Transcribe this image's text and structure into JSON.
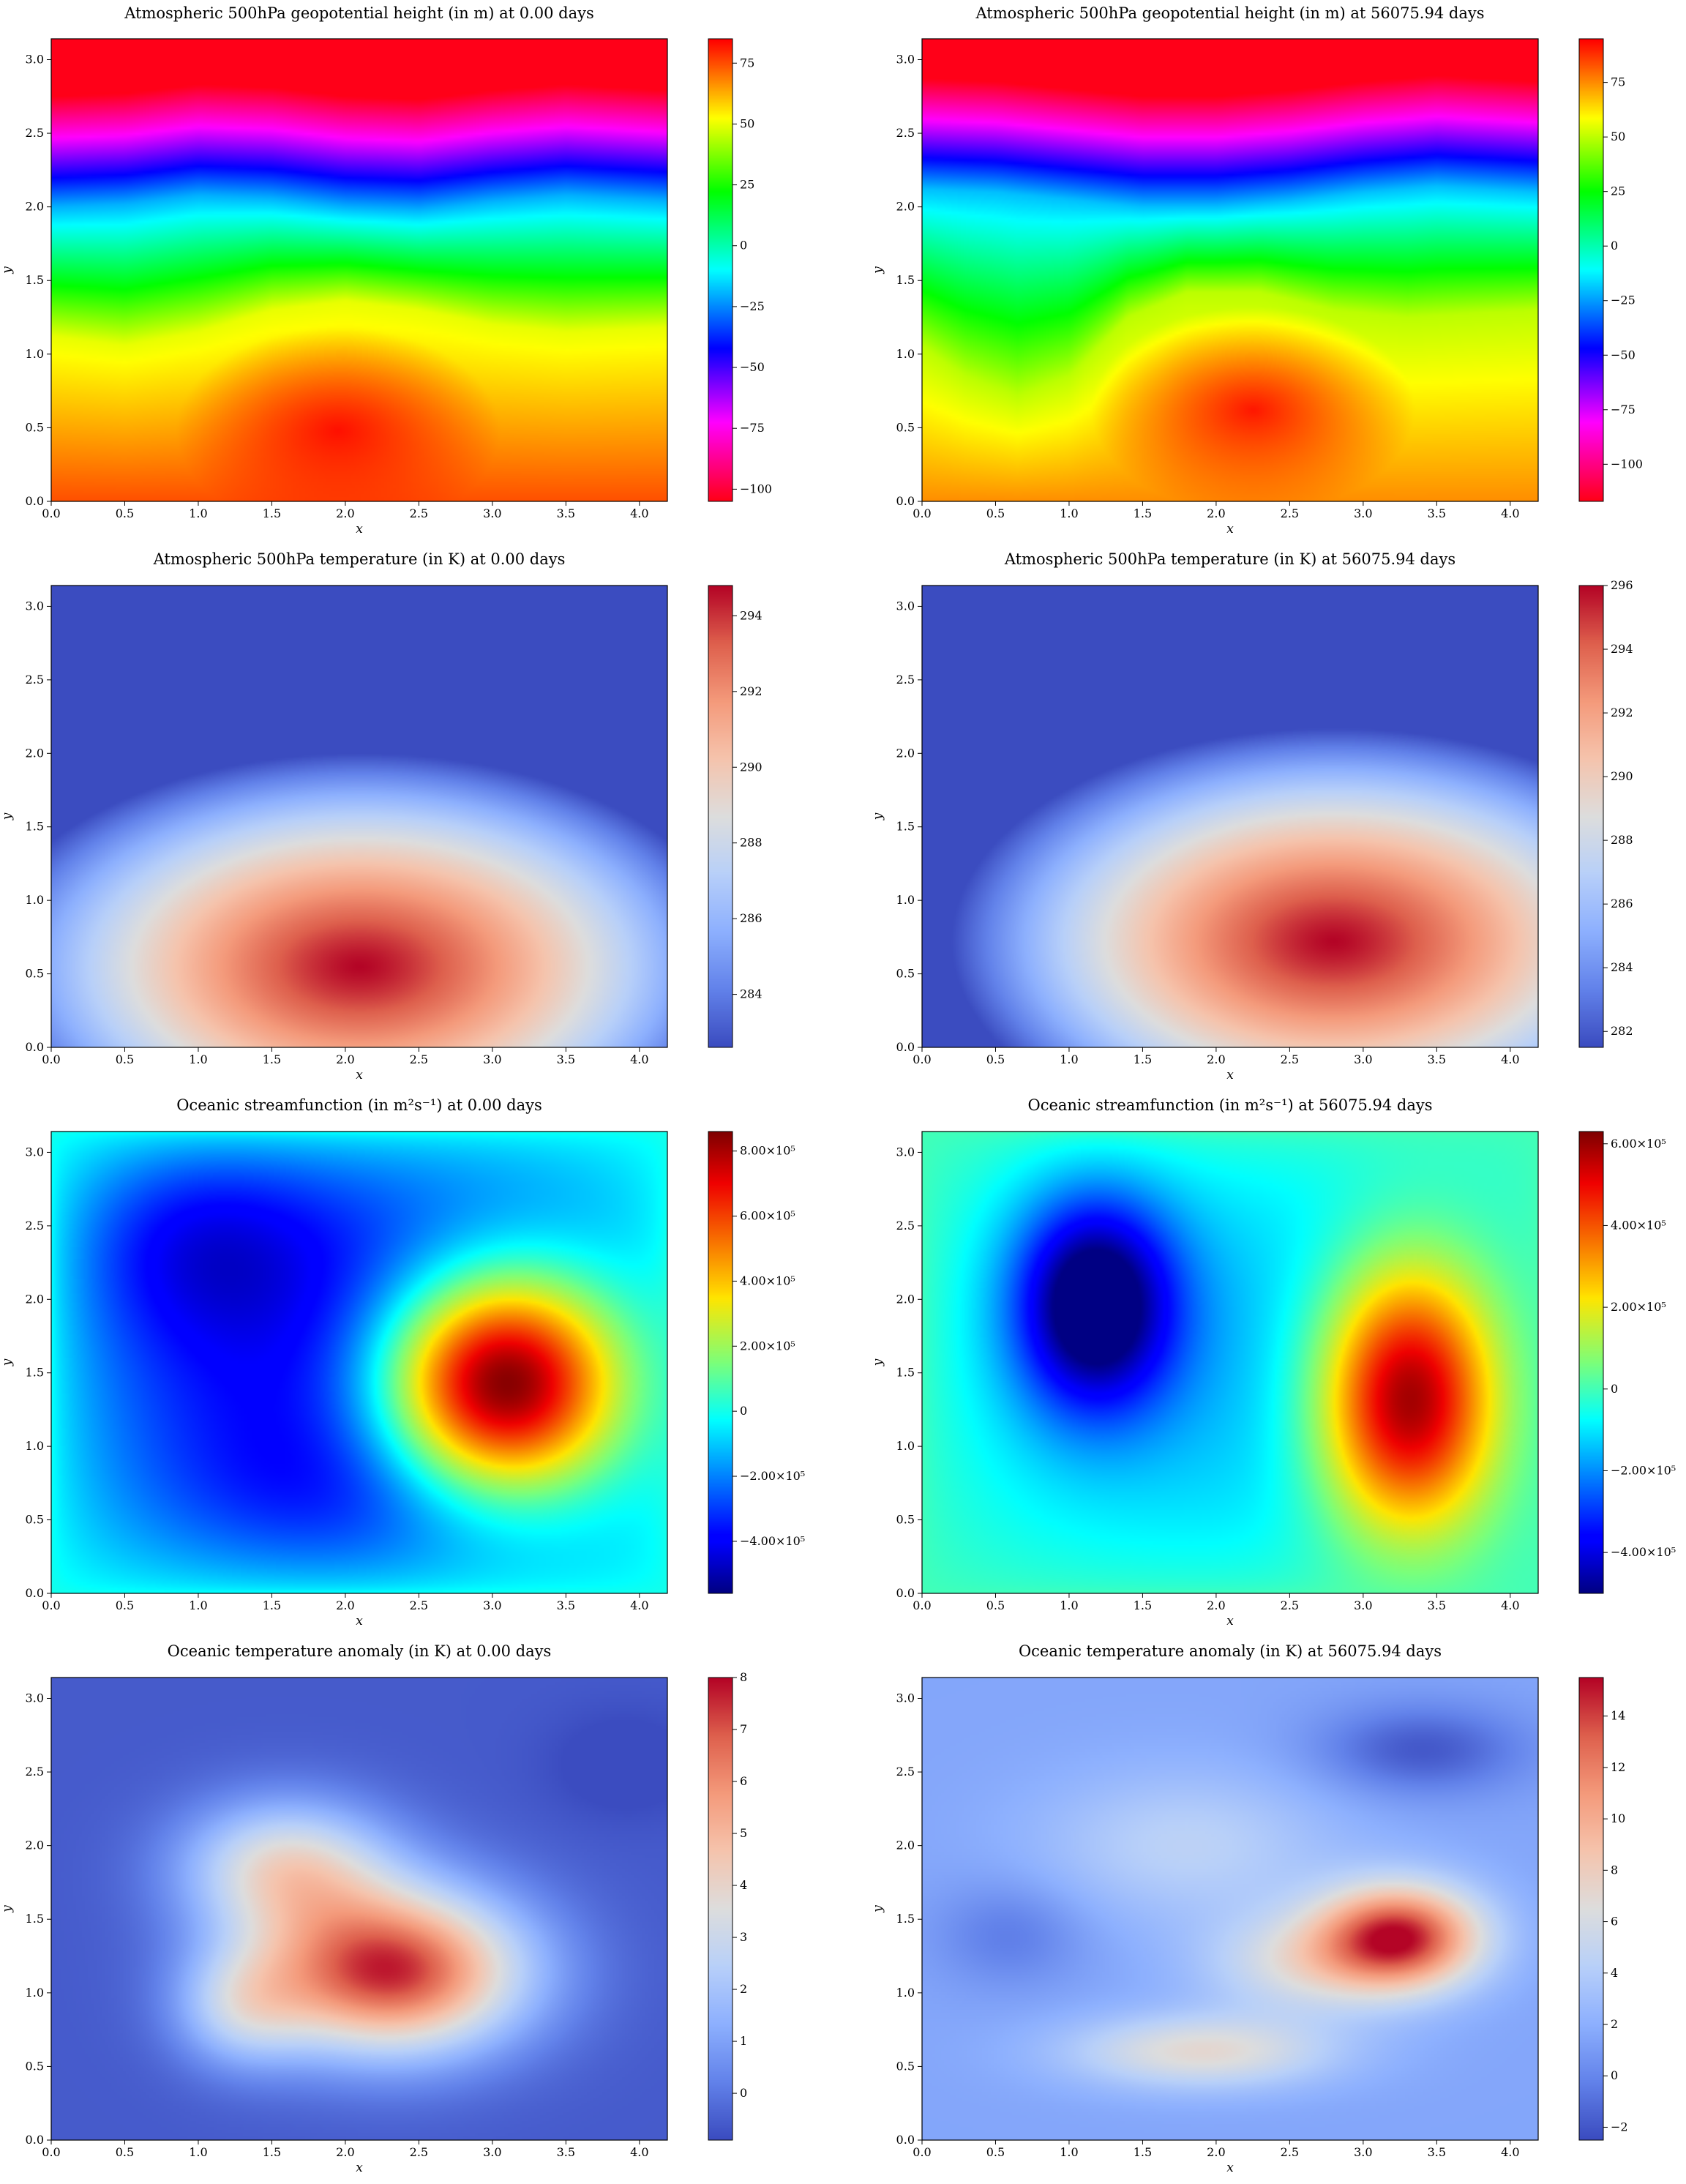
{
  "figure": {
    "layout": "4 rows x 2 columns of heatmaps, each with a colorbar on the right",
    "colormaps": {
      "geopotential": "hsv",
      "atm_temperature": "coolwarm",
      "streamfunction": "jet",
      "ocean_temperature": "coolwarm"
    }
  },
  "chart_data": [
    {
      "type": "heatmap",
      "title": "Atmospheric 500hPa geopotential height (in m) at 0.00 days",
      "xlabel": "x",
      "ylabel": "y",
      "xlim": [
        0,
        4.19
      ],
      "ylim": [
        0,
        3.1416
      ],
      "xticks": [
        "0.0",
        "0.5",
        "1.0",
        "1.5",
        "2.0",
        "2.5",
        "3.0",
        "3.5",
        "4.0"
      ],
      "yticks": [
        "0.0",
        "0.5",
        "1.0",
        "1.5",
        "2.0",
        "2.5",
        "3.0"
      ],
      "colormap": "hsv",
      "colorbar": {
        "min": -105,
        "max": 85,
        "ticks": [
          {
            "v": 75,
            "label": "75"
          },
          {
            "v": 50,
            "label": "50"
          },
          {
            "v": 25,
            "label": "25"
          },
          {
            "v": 0,
            "label": "0"
          },
          {
            "v": -25,
            "label": "−25"
          },
          {
            "v": -50,
            "label": "−50"
          },
          {
            "v": -75,
            "label": "−75"
          },
          {
            "v": -100,
            "label": "−100"
          }
        ]
      },
      "field": {
        "kind": "geo",
        "front": [
          [
            0,
            1.12
          ],
          [
            0.5,
            1.06
          ],
          [
            1.0,
            1.15
          ],
          [
            1.5,
            1.3
          ],
          [
            2.0,
            1.36
          ],
          [
            2.5,
            1.3
          ],
          [
            3.0,
            1.2
          ],
          [
            3.5,
            1.15
          ],
          [
            4.19,
            1.18
          ]
        ],
        "low_band": [
          [
            0,
            2.0
          ],
          [
            0.5,
            2.02
          ],
          [
            1.0,
            2.08
          ],
          [
            1.5,
            2.06
          ],
          [
            2.0,
            2.0
          ],
          [
            2.5,
            1.98
          ],
          [
            3.0,
            2.04
          ],
          [
            3.5,
            2.08
          ],
          [
            4.19,
            2.04
          ]
        ],
        "peak": {
          "x": 1.95,
          "y": 0.48,
          "value": 85
        }
      }
    },
    {
      "type": "heatmap",
      "title": "Atmospheric 500hPa geopotential height (in m) at 56075.94 days",
      "xlabel": "x",
      "ylabel": "y",
      "xlim": [
        0,
        4.19
      ],
      "ylim": [
        0,
        3.1416
      ],
      "xticks": [
        "0.0",
        "0.5",
        "1.0",
        "1.5",
        "2.0",
        "2.5",
        "3.0",
        "3.5",
        "4.0"
      ],
      "yticks": [
        "0.0",
        "0.5",
        "1.0",
        "1.5",
        "2.0",
        "2.5",
        "3.0"
      ],
      "colormap": "hsv",
      "colorbar": {
        "min": -117,
        "max": 95,
        "ticks": [
          {
            "v": 75,
            "label": "75"
          },
          {
            "v": 50,
            "label": "50"
          },
          {
            "v": 25,
            "label": "25"
          },
          {
            "v": 0,
            "label": "0"
          },
          {
            "v": -25,
            "label": "−25"
          },
          {
            "v": -50,
            "label": "−50"
          },
          {
            "v": -75,
            "label": "−75"
          },
          {
            "v": -100,
            "label": "−100"
          }
        ]
      },
      "field": {
        "kind": "geo",
        "front": [
          [
            0,
            1.05
          ],
          [
            0.3,
            0.85
          ],
          [
            0.65,
            0.72
          ],
          [
            1.0,
            0.85
          ],
          [
            1.4,
            1.25
          ],
          [
            1.8,
            1.42
          ],
          [
            2.3,
            1.42
          ],
          [
            2.8,
            1.3
          ],
          [
            3.3,
            1.25
          ],
          [
            3.8,
            1.28
          ],
          [
            4.19,
            1.3
          ]
        ],
        "low_band": [
          [
            0,
            2.12
          ],
          [
            0.5,
            2.1
          ],
          [
            1.0,
            2.05
          ],
          [
            1.5,
            2.0
          ],
          [
            2.0,
            2.0
          ],
          [
            2.5,
            2.04
          ],
          [
            3.0,
            2.1
          ],
          [
            3.5,
            2.14
          ],
          [
            4.19,
            2.1
          ]
        ],
        "peak": {
          "x": 2.25,
          "y": 0.62,
          "value": 95
        }
      }
    },
    {
      "type": "heatmap",
      "title": "Atmospheric 500hPa temperature (in K) at 0.00 days",
      "xlabel": "x",
      "ylabel": "y",
      "xlim": [
        0,
        4.19
      ],
      "ylim": [
        0,
        3.1416
      ],
      "xticks": [
        "0.0",
        "0.5",
        "1.0",
        "1.5",
        "2.0",
        "2.5",
        "3.0",
        "3.5",
        "4.0"
      ],
      "yticks": [
        "0.0",
        "0.5",
        "1.0",
        "1.5",
        "2.0",
        "2.5",
        "3.0"
      ],
      "colormap": "coolwarm",
      "colorbar": {
        "min": 282.6,
        "max": 294.8,
        "ticks": [
          {
            "v": 294,
            "label": "294"
          },
          {
            "v": 292,
            "label": "292"
          },
          {
            "v": 290,
            "label": "290"
          },
          {
            "v": 288,
            "label": "288"
          },
          {
            "v": 286,
            "label": "286"
          },
          {
            "v": 284,
            "label": "284"
          }
        ]
      },
      "field": {
        "kind": "temp",
        "center": {
          "x": 2.1,
          "y": 0.55
        },
        "top": 282.6,
        "max": 294.8
      }
    },
    {
      "type": "heatmap",
      "title": "Atmospheric 500hPa temperature (in K) at 56075.94 days",
      "xlabel": "x",
      "ylabel": "y",
      "xlim": [
        0,
        4.19
      ],
      "ylim": [
        0,
        3.1416
      ],
      "xticks": [
        "0.0",
        "0.5",
        "1.0",
        "1.5",
        "2.0",
        "2.5",
        "3.0",
        "3.5",
        "4.0"
      ],
      "yticks": [
        "0.0",
        "0.5",
        "1.0",
        "1.5",
        "2.0",
        "2.5",
        "3.0"
      ],
      "colormap": "coolwarm",
      "colorbar": {
        "min": 281.5,
        "max": 296.0,
        "ticks": [
          {
            "v": 296,
            "label": "296"
          },
          {
            "v": 294,
            "label": "294"
          },
          {
            "v": 292,
            "label": "292"
          },
          {
            "v": 290,
            "label": "290"
          },
          {
            "v": 288,
            "label": "288"
          },
          {
            "v": 286,
            "label": "286"
          },
          {
            "v": 284,
            "label": "284"
          },
          {
            "v": 282,
            "label": "282"
          }
        ]
      },
      "field": {
        "kind": "temp",
        "center": {
          "x": 2.8,
          "y": 0.72
        },
        "top": 281.5,
        "max": 296.0
      }
    },
    {
      "type": "heatmap",
      "title": "Oceanic streamfunction (in m²s⁻¹) at 0.00 days",
      "xlabel": "x",
      "ylabel": "y",
      "xlim": [
        0,
        4.19
      ],
      "ylim": [
        0,
        3.1416
      ],
      "xticks": [
        "0.0",
        "0.5",
        "1.0",
        "1.5",
        "2.0",
        "2.5",
        "3.0",
        "3.5",
        "4.0"
      ],
      "yticks": [
        "0.0",
        "0.5",
        "1.0",
        "1.5",
        "2.0",
        "2.5",
        "3.0"
      ],
      "colormap": "jet",
      "colorbar": {
        "min": -560000,
        "max": 860000,
        "ticks": [
          {
            "v": 800000,
            "label": "8.00×10⁵"
          },
          {
            "v": 600000,
            "label": "6.00×10⁵"
          },
          {
            "v": 400000,
            "label": "4.00×10⁵"
          },
          {
            "v": 200000,
            "label": "2.00×10⁵"
          },
          {
            "v": 0,
            "label": "0"
          },
          {
            "v": -200000,
            "label": "−2.00×10⁵"
          },
          {
            "v": -400000,
            "label": "−4.00×10⁵"
          }
        ]
      },
      "field": {
        "kind": "stream",
        "gyres": [
          {
            "x": 3.12,
            "y": 1.42,
            "sx": 0.85,
            "sy": 0.78,
            "amp": 1300000
          },
          {
            "x": 0.9,
            "y": 2.45,
            "sx": 0.9,
            "sy": 0.7,
            "amp": -230000
          },
          {
            "x": 1.9,
            "y": 0.65,
            "sx": 1.2,
            "sy": 0.55,
            "amp": -90000
          }
        ],
        "base": -420000,
        "max": 860000,
        "min": -560000
      }
    },
    {
      "type": "heatmap",
      "title": "Oceanic streamfunction (in m²s⁻¹) at 56075.94 days",
      "xlabel": "x",
      "ylabel": "y",
      "xlim": [
        0,
        4.19
      ],
      "ylim": [
        0,
        3.1416
      ],
      "xticks": [
        "0.0",
        "0.5",
        "1.0",
        "1.5",
        "2.0",
        "2.5",
        "3.0",
        "3.5",
        "4.0"
      ],
      "yticks": [
        "0.0",
        "0.5",
        "1.0",
        "1.5",
        "2.0",
        "2.5",
        "3.0"
      ],
      "colormap": "jet",
      "colorbar": {
        "min": -500000,
        "max": 630000,
        "ticks": [
          {
            "v": 600000,
            "label": "6.00×10⁵"
          },
          {
            "v": 400000,
            "label": "4.00×10⁵"
          },
          {
            "v": 200000,
            "label": "2.00×10⁵"
          },
          {
            "v": 0,
            "label": "0"
          },
          {
            "v": -200000,
            "label": "−2.00×10⁵"
          },
          {
            "v": -400000,
            "label": "−4.00×10⁵"
          }
        ]
      },
      "field": {
        "kind": "stream",
        "gyres": [
          {
            "x": 3.35,
            "y": 1.3,
            "sx": 0.62,
            "sy": 0.95,
            "amp": 800000
          },
          {
            "x": 1.15,
            "y": 2.0,
            "sx": 0.55,
            "sy": 0.75,
            "amp": -560000
          }
        ],
        "base": -150000,
        "max": 630000,
        "min": -500000
      }
    },
    {
      "type": "heatmap",
      "title": "Oceanic temperature anomaly (in K) at 0.00 days",
      "xlabel": "x",
      "ylabel": "y",
      "xlim": [
        0,
        4.19
      ],
      "ylim": [
        0,
        3.1416
      ],
      "xticks": [
        "0.0",
        "0.5",
        "1.0",
        "1.5",
        "2.0",
        "2.5",
        "3.0",
        "3.5",
        "4.0"
      ],
      "yticks": [
        "0.0",
        "0.5",
        "1.0",
        "1.5",
        "2.0",
        "2.5",
        "3.0"
      ],
      "colormap": "coolwarm",
      "colorbar": {
        "min": -0.9,
        "max": 8.0,
        "ticks": [
          {
            "v": 8,
            "label": "8"
          },
          {
            "v": 7,
            "label": "7"
          },
          {
            "v": 6,
            "label": "6"
          },
          {
            "v": 5,
            "label": "5"
          },
          {
            "v": 4,
            "label": "4"
          },
          {
            "v": 3,
            "label": "3"
          },
          {
            "v": 2,
            "label": "2"
          },
          {
            "v": 1,
            "label": "1"
          },
          {
            "v": 0,
            "label": "0"
          }
        ]
      },
      "field": {
        "kind": "blobs",
        "base": -0.6,
        "min": -0.9,
        "max": 8.0,
        "blobs": [
          {
            "x": 2.3,
            "y": 1.15,
            "sx": 0.9,
            "sy": 0.55,
            "amp": 8.2
          },
          {
            "x": 1.6,
            "y": 1.85,
            "sx": 0.7,
            "sy": 0.45,
            "amp": 4.3
          },
          {
            "x": 1.3,
            "y": 0.9,
            "sx": 0.45,
            "sy": 0.4,
            "amp": 2.6
          },
          {
            "x": 3.9,
            "y": 2.55,
            "sx": 0.5,
            "sy": 0.35,
            "amp": -0.6
          }
        ]
      }
    },
    {
      "type": "heatmap",
      "title": "Oceanic temperature anomaly (in K) at 56075.94 days",
      "xlabel": "x",
      "ylabel": "y",
      "xlim": [
        0,
        4.19
      ],
      "ylim": [
        0,
        3.1416
      ],
      "xticks": [
        "0.0",
        "0.5",
        "1.0",
        "1.5",
        "2.0",
        "2.5",
        "3.0",
        "3.5",
        "4.0"
      ],
      "yticks": [
        "0.0",
        "0.5",
        "1.0",
        "1.5",
        "2.0",
        "2.5",
        "3.0"
      ],
      "colormap": "coolwarm",
      "colorbar": {
        "min": -2.5,
        "max": 15.5,
        "ticks": [
          {
            "v": 14,
            "label": "14"
          },
          {
            "v": 12,
            "label": "12"
          },
          {
            "v": 10,
            "label": "10"
          },
          {
            "v": 8,
            "label": "8"
          },
          {
            "v": 6,
            "label": "6"
          },
          {
            "v": 4,
            "label": "4"
          },
          {
            "v": 2,
            "label": "2"
          },
          {
            "v": 0,
            "label": "0"
          },
          {
            "v": -2,
            "label": "−2"
          }
        ]
      },
      "field": {
        "kind": "blobs",
        "base": 1.5,
        "min": -2.5,
        "max": 15.5,
        "blobs": [
          {
            "x": 3.25,
            "y": 1.38,
            "sx": 0.55,
            "sy": 0.35,
            "amp": 13.0
          },
          {
            "x": 1.9,
            "y": 0.6,
            "sx": 0.9,
            "sy": 0.25,
            "amp": 5.5
          },
          {
            "x": 2.6,
            "y": 1.2,
            "sx": 0.7,
            "sy": 0.35,
            "amp": 4.5
          },
          {
            "x": 1.8,
            "y": 2.0,
            "sx": 1.0,
            "sy": 0.5,
            "amp": 3.0
          },
          {
            "x": 3.4,
            "y": 2.65,
            "sx": 0.7,
            "sy": 0.3,
            "amp": -3.5
          },
          {
            "x": 0.6,
            "y": 1.4,
            "sx": 0.5,
            "sy": 0.35,
            "amp": -2.0
          }
        ]
      }
    }
  ]
}
